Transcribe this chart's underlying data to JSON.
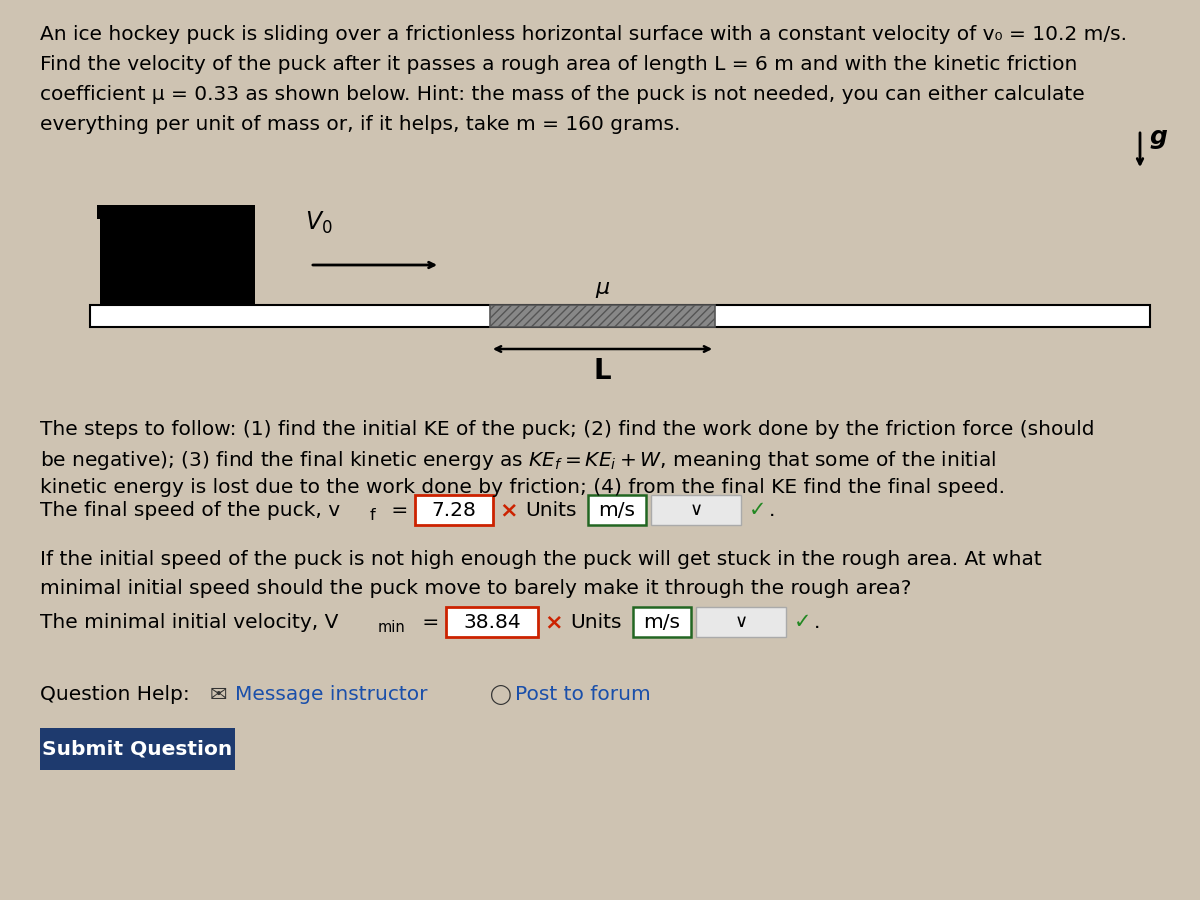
{
  "background_color": "#cec3b2",
  "line1": "An ice hockey puck is sliding over a frictionless horizontal surface with a constant velocity of v₀ = 10.2 m/s.",
  "line2": "Find the velocity of the puck after it passes a rough area of length L = 6 m and with the kinetic friction",
  "line3": "coefficient μ = 0.33 as shown below. Hint: the mass of the puck is not needed, you can either calculate",
  "line4": "everything per unit of mass or, if it helps, take m = 160 grams.",
  "step1": "The steps to follow: (1) find the initial KE of the puck; (2) find the work done by the friction force (should",
  "step2": "be negative); (3) find the final kinetic energy as $KE_f = KE_i + W$, meaning that some of the initial",
  "step3": "kinetic energy is lost due to the work done by friction; (4) from the final KE find the final speed.",
  "ans1_val": "7.28",
  "ans2_val": "38.84",
  "font_size": 14.5
}
